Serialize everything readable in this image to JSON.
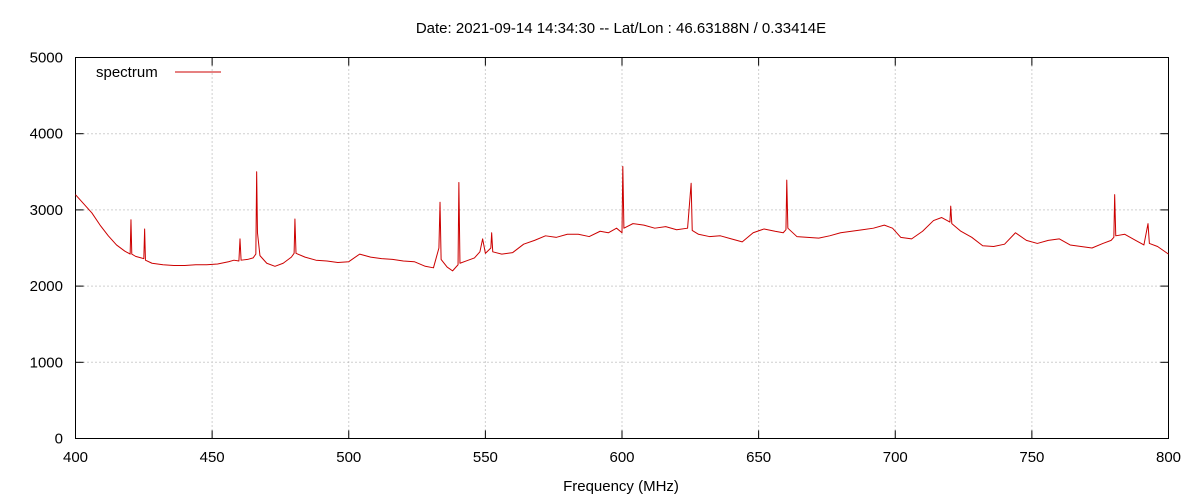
{
  "chart_data": {
    "type": "line",
    "title": "Date: 2021-09-14 14:34:30  --  Lat/Lon : 46.63188N / 0.33414E",
    "xlabel": "Frequency (MHz)",
    "ylabel": "",
    "xlim": [
      400,
      800
    ],
    "ylim": [
      0,
      5000
    ],
    "x_ticks": [
      400,
      450,
      500,
      550,
      600,
      650,
      700,
      750,
      800
    ],
    "y_ticks": [
      0,
      1000,
      2000,
      3000,
      4000,
      5000
    ],
    "grid": true,
    "legend_position": "top-left",
    "series": [
      {
        "name": "spectrum",
        "color": "#cc0000",
        "points": [
          [
            400,
            3200
          ],
          [
            403,
            3080
          ],
          [
            406,
            2960
          ],
          [
            409,
            2800
          ],
          [
            412,
            2660
          ],
          [
            415,
            2540
          ],
          [
            418,
            2460
          ],
          [
            420,
            2420
          ],
          [
            420.3,
            2870
          ],
          [
            420.6,
            2420
          ],
          [
            422,
            2390
          ],
          [
            424,
            2370
          ],
          [
            425,
            2360
          ],
          [
            425.3,
            2750
          ],
          [
            425.6,
            2340
          ],
          [
            428,
            2300
          ],
          [
            432,
            2280
          ],
          [
            436,
            2270
          ],
          [
            440,
            2270
          ],
          [
            444,
            2280
          ],
          [
            448,
            2280
          ],
          [
            452,
            2290
          ],
          [
            456,
            2320
          ],
          [
            458,
            2340
          ],
          [
            459.8,
            2330
          ],
          [
            460.2,
            2620
          ],
          [
            460.6,
            2340
          ],
          [
            463,
            2350
          ],
          [
            465,
            2370
          ],
          [
            466,
            2420
          ],
          [
            466.3,
            3500
          ],
          [
            466.6,
            2700
          ],
          [
            467.5,
            2400
          ],
          [
            470,
            2300
          ],
          [
            473,
            2260
          ],
          [
            476,
            2300
          ],
          [
            479,
            2380
          ],
          [
            480,
            2430
          ],
          [
            480.3,
            2880
          ],
          [
            480.7,
            2430
          ],
          [
            484,
            2380
          ],
          [
            488,
            2340
          ],
          [
            492,
            2330
          ],
          [
            496,
            2310
          ],
          [
            500,
            2320
          ],
          [
            504,
            2420
          ],
          [
            508,
            2380
          ],
          [
            512,
            2360
          ],
          [
            516,
            2350
          ],
          [
            520,
            2330
          ],
          [
            524,
            2320
          ],
          [
            528,
            2260
          ],
          [
            531,
            2240
          ],
          [
            533,
            2500
          ],
          [
            533.4,
            3100
          ],
          [
            533.8,
            2350
          ],
          [
            536,
            2250
          ],
          [
            538,
            2200
          ],
          [
            540,
            2280
          ],
          [
            540.3,
            3360
          ],
          [
            540.7,
            2300
          ],
          [
            543,
            2330
          ],
          [
            546,
            2370
          ],
          [
            548,
            2450
          ],
          [
            549,
            2620
          ],
          [
            550,
            2430
          ],
          [
            552,
            2500
          ],
          [
            552.3,
            2700
          ],
          [
            552.7,
            2450
          ],
          [
            556,
            2420
          ],
          [
            560,
            2440
          ],
          [
            564,
            2550
          ],
          [
            568,
            2600
          ],
          [
            572,
            2660
          ],
          [
            576,
            2640
          ],
          [
            580,
            2680
          ],
          [
            584,
            2680
          ],
          [
            588,
            2650
          ],
          [
            592,
            2720
          ],
          [
            595,
            2700
          ],
          [
            598,
            2760
          ],
          [
            600,
            2700
          ],
          [
            600.3,
            3570
          ],
          [
            600.7,
            2760
          ],
          [
            604,
            2820
          ],
          [
            608,
            2800
          ],
          [
            612,
            2760
          ],
          [
            616,
            2780
          ],
          [
            620,
            2740
          ],
          [
            624,
            2760
          ],
          [
            625.3,
            3350
          ],
          [
            625.7,
            2730
          ],
          [
            628,
            2680
          ],
          [
            632,
            2650
          ],
          [
            636,
            2660
          ],
          [
            640,
            2620
          ],
          [
            644,
            2580
          ],
          [
            648,
            2700
          ],
          [
            652,
            2750
          ],
          [
            656,
            2720
          ],
          [
            659,
            2700
          ],
          [
            660,
            2740
          ],
          [
            660.3,
            3390
          ],
          [
            660.7,
            2760
          ],
          [
            664,
            2650
          ],
          [
            668,
            2640
          ],
          [
            672,
            2630
          ],
          [
            676,
            2660
          ],
          [
            680,
            2700
          ],
          [
            684,
            2720
          ],
          [
            688,
            2740
          ],
          [
            692,
            2760
          ],
          [
            696,
            2800
          ],
          [
            699,
            2760
          ],
          [
            702,
            2640
          ],
          [
            706,
            2620
          ],
          [
            710,
            2720
          ],
          [
            714,
            2860
          ],
          [
            717,
            2900
          ],
          [
            720,
            2840
          ],
          [
            720.3,
            3050
          ],
          [
            720.7,
            2820
          ],
          [
            724,
            2720
          ],
          [
            728,
            2640
          ],
          [
            732,
            2530
          ],
          [
            736,
            2520
          ],
          [
            740,
            2550
          ],
          [
            744,
            2700
          ],
          [
            748,
            2600
          ],
          [
            752,
            2560
          ],
          [
            756,
            2600
          ],
          [
            760,
            2620
          ],
          [
            764,
            2540
          ],
          [
            768,
            2520
          ],
          [
            772,
            2500
          ],
          [
            776,
            2560
          ],
          [
            779,
            2600
          ],
          [
            780,
            2640
          ],
          [
            780.3,
            3200
          ],
          [
            780.7,
            2660
          ],
          [
            784,
            2680
          ],
          [
            788,
            2600
          ],
          [
            791,
            2540
          ],
          [
            792.5,
            2820
          ],
          [
            793,
            2560
          ],
          [
            796,
            2520
          ],
          [
            800,
            2420
          ]
        ]
      }
    ]
  }
}
